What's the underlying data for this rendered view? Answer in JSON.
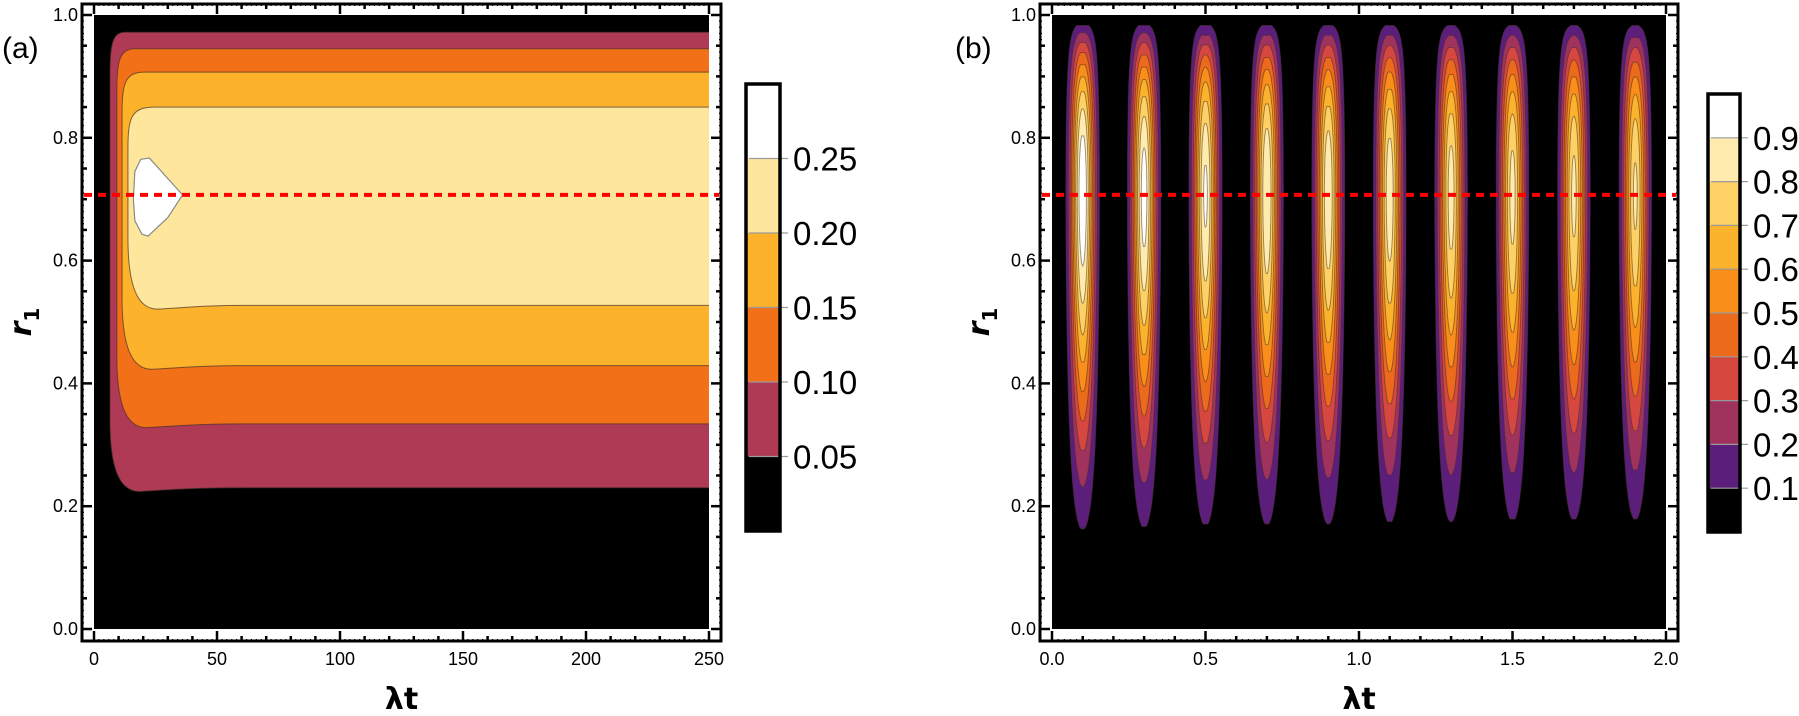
{
  "chart_data": [
    {
      "type": "contour",
      "panel_label": "(a)",
      "xlabel": "λt",
      "ylabel": "r",
      "ylabel_subscript": "1",
      "xlim": [
        0,
        250
      ],
      "ylim": [
        0,
        1
      ],
      "x_ticks": [
        "0",
        "50",
        "100",
        "150",
        "200",
        "250"
      ],
      "y_ticks": [
        "0.0",
        "0.2",
        "0.4",
        "0.6",
        "0.8",
        "1.0"
      ],
      "contour_levels": [
        0.05,
        0.1,
        0.15,
        0.2,
        0.25
      ],
      "colorbar": {
        "range": [
          0,
          0.3
        ],
        "labels": [
          "0.05",
          "0.10",
          "0.15",
          "0.20",
          "0.25"
        ],
        "colors": [
          "#000000",
          "#ae3a55",
          "#f27118",
          "#fdb22b",
          "#fee79c",
          "#ffffff"
        ]
      },
      "bands": [
        {
          "level": 0.05,
          "r_low": 0.23,
          "r_high": 0.972,
          "onset_t": 6.5
        },
        {
          "level": 0.1,
          "r_low": 0.334,
          "r_high": 0.945,
          "onset_t": 9.3
        },
        {
          "level": 0.15,
          "r_low": 0.429,
          "r_high": 0.907,
          "onset_t": 11.4
        },
        {
          "level": 0.2,
          "r_low": 0.527,
          "r_high": 0.85,
          "onset_t": 13.8
        }
      ],
      "peak_region": {
        "level": 0.25,
        "outline": [
          [
            16,
            0.7
          ],
          [
            16.6,
            0.745
          ],
          [
            19,
            0.765
          ],
          [
            22.5,
            0.767
          ],
          [
            36,
            0.707
          ],
          [
            30,
            0.67
          ],
          [
            22,
            0.64
          ],
          [
            19.5,
            0.643
          ],
          [
            16.6,
            0.665
          ]
        ]
      },
      "reference_line": {
        "r": 0.707,
        "color": "#ff0000",
        "style": "dashed"
      }
    },
    {
      "type": "contour",
      "panel_label": "(b)",
      "xlabel": "λt",
      "ylabel": "r",
      "ylabel_subscript": "1",
      "xlim": [
        0,
        2
      ],
      "ylim": [
        0,
        1
      ],
      "x_ticks": [
        "0.0",
        "0.5",
        "1.0",
        "1.5",
        "2.0"
      ],
      "y_ticks": [
        "0.0",
        "0.2",
        "0.4",
        "0.6",
        "0.8",
        "1.0"
      ],
      "contour_levels": [
        0.1,
        0.2,
        0.3,
        0.4,
        0.5,
        0.6,
        0.7,
        0.8,
        0.9
      ],
      "colorbar": {
        "range": [
          0,
          1
        ],
        "labels": [
          "0.1",
          "0.2",
          "0.3",
          "0.4",
          "0.5",
          "0.6",
          "0.7",
          "0.8",
          "0.9"
        ],
        "colors": [
          "#000000",
          "#5b1e7a",
          "#a0325e",
          "#d5473f",
          "#ec6a1c",
          "#f98f1a",
          "#fbb32e",
          "#fdd166",
          "#feebad",
          "#ffffff"
        ]
      },
      "column_centers_t": [
        0.1,
        0.3,
        0.5,
        0.7,
        0.9,
        1.1,
        1.3,
        1.5,
        1.7,
        1.9
      ],
      "column_peak_values": [
        0.99,
        0.95,
        0.92,
        0.9,
        0.89,
        0.87,
        0.85,
        0.84,
        0.83,
        0.82
      ],
      "peak_r": 0.707,
      "reference_line": {
        "r": 0.707,
        "color": "#ff0000",
        "style": "dashed"
      }
    }
  ]
}
